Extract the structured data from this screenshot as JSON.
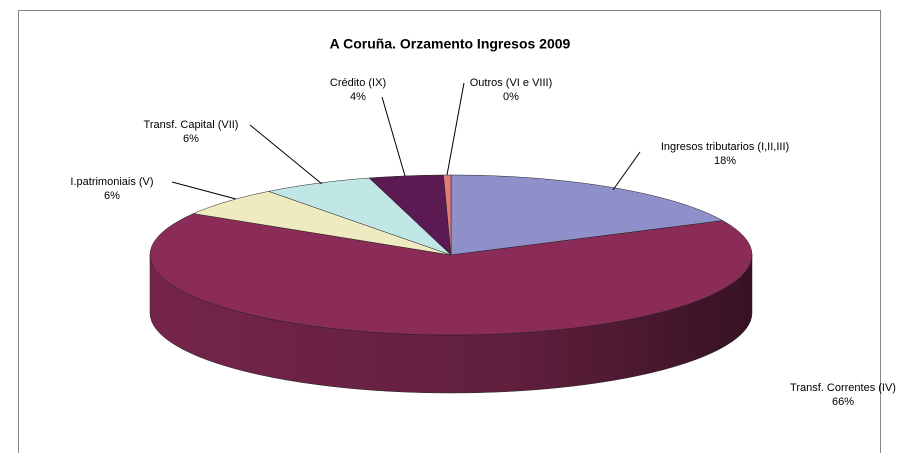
{
  "chart_data": {
    "type": "pie3d",
    "title": "A Coruña. Orzamento Ingresos 2009",
    "categories": [
      "Ingresos tributarios (I,II,III)",
      "Transf. Correntes (IV)",
      "I.patrimoniais (V)",
      "Transf. Capital (VII)",
      "Crédito (IX)",
      "Outros (VI e VIII)"
    ],
    "values": [
      18,
      66,
      6,
      6,
      4,
      0.4
    ],
    "value_labels": [
      "18%",
      "66%",
      "6%",
      "6%",
      "4%",
      "0%"
    ],
    "colors": [
      "#8f8fca",
      "#8a2c57",
      "#efebc0",
      "#c0e6e6",
      "#5b1a52",
      "#e27c7c"
    ]
  }
}
